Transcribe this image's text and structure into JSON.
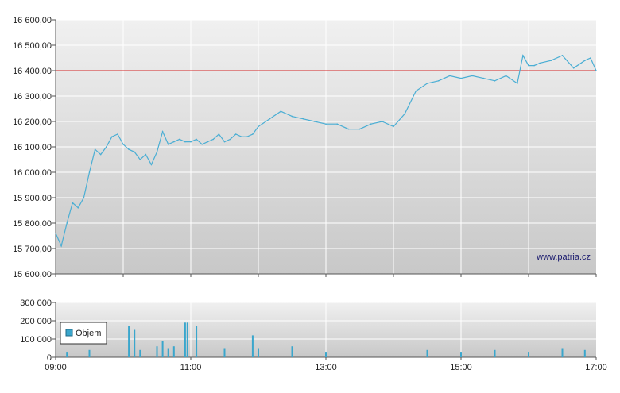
{
  "colors": {
    "price_line": "#4aaed4",
    "reference_line": "#d42424",
    "volume_bar": "#3aa6cc",
    "grid": "#ffffff",
    "plot_bg_top": "#f0f0f0",
    "plot_bg_bottom": "#c8c8c8",
    "axis": "#555555"
  },
  "watermark": "www.patria.cz",
  "legend": {
    "label": "Objem"
  },
  "chart_data": [
    {
      "type": "line",
      "title": "",
      "xlabel": "",
      "ylabel": "",
      "ylim": [
        15600,
        16600
      ],
      "xlim": [
        "09:00",
        "17:00"
      ],
      "yticks": [
        "15 600,00",
        "15 700,00",
        "15 800,00",
        "15 900,00",
        "16 000,00",
        "16 100,00",
        "16 200,00",
        "16 300,00",
        "16 400,00",
        "16 500,00",
        "16 600,00"
      ],
      "ytick_values": [
        15600,
        15700,
        15800,
        15900,
        16000,
        16100,
        16200,
        16300,
        16400,
        16500,
        16600
      ],
      "grid": true,
      "reference_line": 16400,
      "series": [
        {
          "x": [
            "09:00",
            "09:05",
            "09:10",
            "09:15",
            "09:20",
            "09:25",
            "09:30",
            "09:35",
            "09:40",
            "09:45",
            "09:50",
            "09:55",
            "10:00",
            "10:05",
            "10:10",
            "10:15",
            "10:20",
            "10:25",
            "10:30",
            "10:35",
            "10:40",
            "10:45",
            "10:50",
            "10:55",
            "11:00",
            "11:05",
            "11:10",
            "11:15",
            "11:20",
            "11:25",
            "11:30",
            "11:35",
            "11:40",
            "11:45",
            "11:50",
            "11:55",
            "12:00",
            "12:10",
            "12:20",
            "12:30",
            "12:40",
            "12:50",
            "13:00",
            "13:10",
            "13:20",
            "13:30",
            "13:40",
            "13:50",
            "14:00",
            "14:10",
            "14:20",
            "14:30",
            "14:40",
            "14:50",
            "15:00",
            "15:10",
            "15:20",
            "15:30",
            "15:40",
            "15:50",
            "15:55",
            "16:00",
            "16:05",
            "16:10",
            "16:20",
            "16:30",
            "16:40",
            "16:50",
            "16:55",
            "17:00"
          ],
          "values": [
            15760,
            15710,
            15800,
            15880,
            15860,
            15900,
            16000,
            16090,
            16070,
            16100,
            16140,
            16150,
            16110,
            16090,
            16080,
            16050,
            16070,
            16030,
            16080,
            16160,
            16110,
            16120,
            16130,
            16120,
            16120,
            16130,
            16110,
            16120,
            16130,
            16150,
            16120,
            16130,
            16150,
            16140,
            16140,
            16150,
            16180,
            16210,
            16240,
            16220,
            16210,
            16200,
            16190,
            16190,
            16170,
            16170,
            16190,
            16200,
            16180,
            16230,
            16320,
            16350,
            16360,
            16380,
            16370,
            16380,
            16370,
            16360,
            16380,
            16350,
            16460,
            16420,
            16420,
            16430,
            16440,
            16460,
            16410,
            16440,
            16450,
            16400
          ]
        }
      ]
    },
    {
      "type": "bar",
      "title": "",
      "xlabel": "",
      "ylabel": "",
      "ylim": [
        0,
        300000
      ],
      "yticks": [
        "0",
        "100 000",
        "200 000",
        "300 000"
      ],
      "ytick_values": [
        0,
        100000,
        200000,
        300000
      ],
      "xticks": [
        "09:00",
        "11:00",
        "13:00",
        "15:00",
        "17:00"
      ],
      "grid": true,
      "series": [
        {
          "name": "Objem",
          "x": [
            "09:10",
            "09:30",
            "10:05",
            "10:10",
            "10:15",
            "10:30",
            "10:35",
            "10:40",
            "10:45",
            "10:55",
            "10:57",
            "11:05",
            "11:30",
            "11:55",
            "12:00",
            "12:30",
            "13:00",
            "14:30",
            "15:00",
            "15:30",
            "16:00",
            "16:30",
            "16:50"
          ],
          "values": [
            30000,
            40000,
            170000,
            150000,
            40000,
            60000,
            90000,
            50000,
            60000,
            190000,
            190000,
            170000,
            50000,
            120000,
            50000,
            60000,
            30000,
            40000,
            30000,
            40000,
            30000,
            50000,
            40000
          ]
        }
      ]
    }
  ]
}
